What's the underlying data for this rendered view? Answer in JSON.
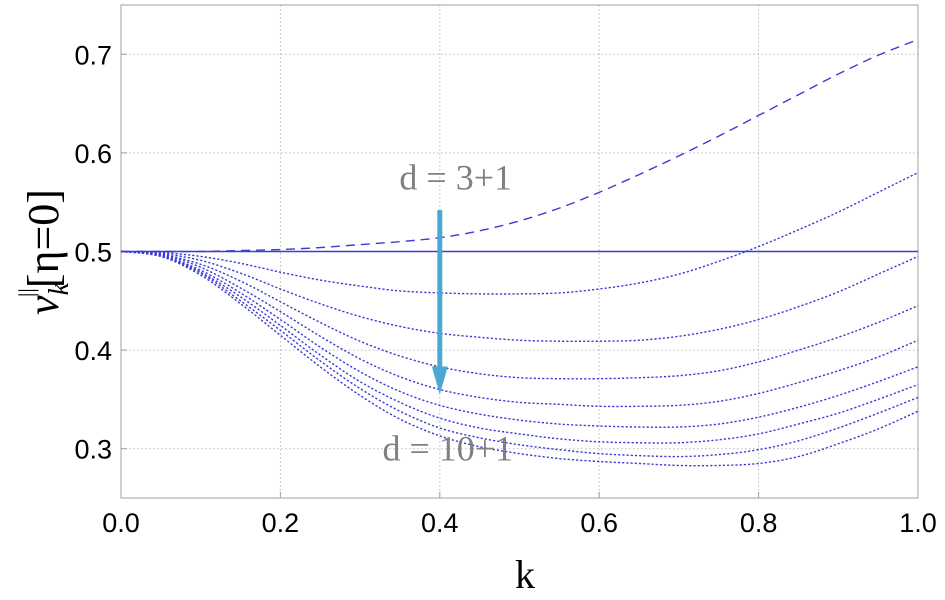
{
  "chart_data": {
    "type": "line",
    "xlabel": "k",
    "ylabel_parts": {
      "base": "ν",
      "sub": "k",
      "sup": "||",
      "bracket": "[η=0]"
    },
    "xlim": [
      0.0,
      1.0
    ],
    "ylim": [
      0.25,
      0.75
    ],
    "xticks": [
      0.0,
      0.2,
      0.4,
      0.6,
      0.8,
      1.0
    ],
    "xtick_labels": [
      "0.0",
      "0.2",
      "0.4",
      "0.6",
      "0.8",
      "1.0"
    ],
    "yticks": [
      0.3,
      0.4,
      0.5,
      0.6,
      0.7
    ],
    "ytick_labels": [
      "0.3",
      "0.4",
      "0.5",
      "0.6",
      "0.7"
    ],
    "grid": true,
    "x": [
      0.0,
      0.05,
      0.1,
      0.15,
      0.2,
      0.25,
      0.3,
      0.35,
      0.4,
      0.45,
      0.5,
      0.55,
      0.6,
      0.65,
      0.7,
      0.75,
      0.8,
      0.85,
      0.9,
      0.95,
      1.0
    ],
    "series": [
      {
        "dims": 2,
        "style": "solid",
        "values": [
          0.5,
          0.5,
          0.5,
          0.5,
          0.5,
          0.5,
          0.5,
          0.5,
          0.5,
          0.5,
          0.5,
          0.5,
          0.5,
          0.5,
          0.5,
          0.5,
          0.5,
          0.5,
          0.5,
          0.5,
          0.5
        ]
      },
      {
        "dims": 3,
        "style": "dashed",
        "values": [
          0.5,
          0.5,
          0.5,
          0.501,
          0.502,
          0.504,
          0.507,
          0.51,
          0.514,
          0.521,
          0.531,
          0.544,
          0.56,
          0.578,
          0.597,
          0.617,
          0.638,
          0.659,
          0.68,
          0.699,
          0.715
        ]
      },
      {
        "dims": 4,
        "style": "dotted",
        "values": [
          0.5,
          0.499,
          0.495,
          0.488,
          0.479,
          0.471,
          0.465,
          0.46,
          0.458,
          0.457,
          0.457,
          0.458,
          0.462,
          0.468,
          0.477,
          0.49,
          0.505,
          0.522,
          0.54,
          0.56,
          0.58
        ]
      },
      {
        "dims": 5,
        "style": "dotted",
        "values": [
          0.5,
          0.498,
          0.491,
          0.478,
          0.462,
          0.447,
          0.434,
          0.424,
          0.417,
          0.413,
          0.41,
          0.409,
          0.409,
          0.41,
          0.414,
          0.421,
          0.431,
          0.444,
          0.459,
          0.477,
          0.495
        ]
      },
      {
        "dims": 6,
        "style": "dotted",
        "values": [
          0.5,
          0.497,
          0.487,
          0.47,
          0.449,
          0.428,
          0.409,
          0.394,
          0.383,
          0.376,
          0.372,
          0.371,
          0.371,
          0.372,
          0.374,
          0.379,
          0.388,
          0.4,
          0.413,
          0.428,
          0.445
        ]
      },
      {
        "dims": 7,
        "style": "dotted",
        "values": [
          0.5,
          0.497,
          0.484,
          0.463,
          0.439,
          0.414,
          0.391,
          0.373,
          0.36,
          0.352,
          0.347,
          0.345,
          0.343,
          0.343,
          0.344,
          0.348,
          0.356,
          0.367,
          0.379,
          0.393,
          0.41
        ]
      },
      {
        "dims": 8,
        "style": "dotted",
        "values": [
          0.5,
          0.496,
          0.481,
          0.458,
          0.431,
          0.403,
          0.378,
          0.358,
          0.344,
          0.335,
          0.329,
          0.325,
          0.323,
          0.322,
          0.322,
          0.325,
          0.332,
          0.342,
          0.354,
          0.368,
          0.383
        ]
      },
      {
        "dims": 9,
        "style": "dotted",
        "values": [
          0.5,
          0.496,
          0.479,
          0.454,
          0.425,
          0.395,
          0.368,
          0.347,
          0.331,
          0.321,
          0.315,
          0.31,
          0.307,
          0.306,
          0.306,
          0.309,
          0.315,
          0.325,
          0.336,
          0.35,
          0.365
        ]
      },
      {
        "dims": 10,
        "style": "dotted",
        "values": [
          0.5,
          0.495,
          0.478,
          0.45,
          0.42,
          0.389,
          0.361,
          0.338,
          0.321,
          0.311,
          0.304,
          0.299,
          0.295,
          0.293,
          0.292,
          0.294,
          0.299,
          0.308,
          0.321,
          0.336,
          0.352
        ]
      },
      {
        "dims": 11,
        "style": "dotted",
        "values": [
          0.5,
          0.495,
          0.476,
          0.447,
          0.415,
          0.383,
          0.354,
          0.33,
          0.313,
          0.302,
          0.295,
          0.29,
          0.287,
          0.285,
          0.283,
          0.283,
          0.285,
          0.292,
          0.305,
          0.32,
          0.338
        ]
      }
    ],
    "annotations": [
      {
        "text": "d = 3+1",
        "x": 0.42,
        "y": 0.575
      },
      {
        "text": "d = 10+1",
        "x": 0.41,
        "y": 0.3
      }
    ],
    "arrow": {
      "x": 0.4,
      "y_from": 0.542,
      "y_to": 0.355,
      "color": "#4aa8d2"
    },
    "colors": {
      "line": "#3b3bd6",
      "grid": "#b8b8b8",
      "frame": "#a0a0a0"
    }
  }
}
